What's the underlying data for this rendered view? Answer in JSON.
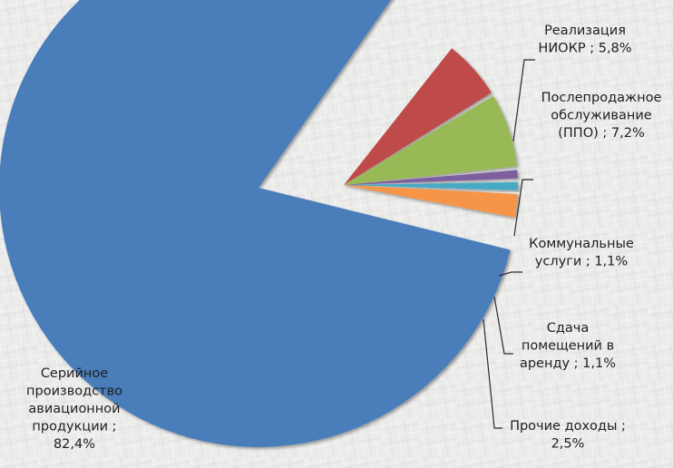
{
  "chart_data": {
    "type": "pie",
    "title": "",
    "exploded": true,
    "series": [
      {
        "values": [
          5.8,
          7.2,
          1.1,
          1.1,
          2.5,
          82.4
        ]
      }
    ],
    "categories": [
      "Реализация НИОКР",
      "Послепродажное обслуживание (ППО)",
      "Коммунальные услуги",
      "Сдача помещений в аренду",
      "Прочие доходы",
      "Серийное производство авиационной продукции"
    ],
    "colors": [
      "#be4b48",
      "#98b954",
      "#7d5fa0",
      "#46aac5",
      "#f69546",
      "#4a7ebb"
    ],
    "labels": [
      [
        "Реализация",
        "НИОКР ; 5,8%"
      ],
      [
        "Послепродажное",
        "обслуживание",
        "(ППО) ; 7,2%"
      ],
      [
        "Коммунальные",
        "услуги ; 1,1%"
      ],
      [
        "Сдача",
        "помещений в",
        "аренду ; 1,1%"
      ],
      [
        "Прочие доходы ;",
        "2,5%"
      ],
      [
        "Серийное",
        "производство",
        "авиационной",
        "продукции ;",
        "82,4%"
      ]
    ],
    "legend": "none",
    "leader_lines": true
  }
}
